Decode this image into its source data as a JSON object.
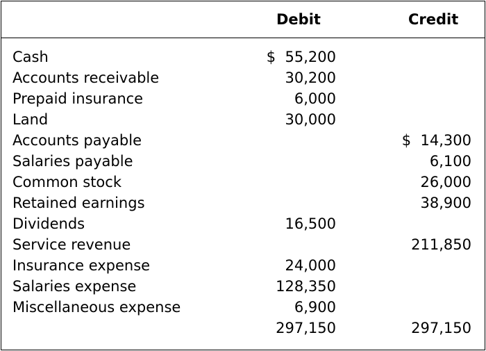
{
  "columns": {
    "debit": "Debit",
    "credit": "Credit"
  },
  "rows": [
    {
      "label": "Cash",
      "debit": "$  55,200",
      "credit": ""
    },
    {
      "label": "Accounts receivable",
      "debit": "30,200",
      "credit": ""
    },
    {
      "label": "Prepaid insurance",
      "debit": "6,000",
      "credit": ""
    },
    {
      "label": "Land",
      "debit": "30,000",
      "credit": ""
    },
    {
      "label": "Accounts payable",
      "debit": "",
      "credit": "$  14,300"
    },
    {
      "label": "Salaries payable",
      "debit": "",
      "credit": "6,100"
    },
    {
      "label": "Common stock",
      "debit": "",
      "credit": "26,000"
    },
    {
      "label": "Retained earnings",
      "debit": "",
      "credit": "38,900"
    },
    {
      "label": "Dividends",
      "debit": "16,500",
      "credit": ""
    },
    {
      "label": "Service revenue",
      "debit": "",
      "credit": "211,850"
    },
    {
      "label": "Insurance expense",
      "debit": "24,000",
      "credit": ""
    },
    {
      "label": "Salaries expense",
      "debit": "128,350",
      "credit": ""
    },
    {
      "label": "Miscellaneous expense",
      "debit": "6,900",
      "credit": ""
    }
  ],
  "totals": {
    "label": "",
    "debit": "297,150",
    "credit": "297,150"
  }
}
